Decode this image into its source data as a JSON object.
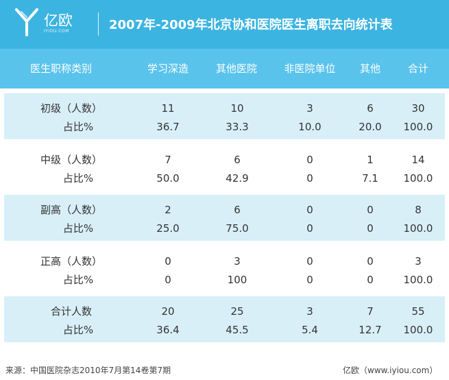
{
  "header": {
    "logo_text": "亿欧",
    "logo_sub": "IYIOU.COM",
    "title": "2007年-2009年北京协和医院医生离职去向统计表"
  },
  "table": {
    "columns": [
      "医生职称类别",
      "学习深造",
      "其他医院",
      "非医院单位",
      "其他",
      "合计"
    ],
    "groups": [
      {
        "label": "初级（人数）",
        "sub_label": "占比%",
        "counts": [
          "11",
          "10",
          "3",
          "6",
          "30"
        ],
        "percents": [
          "36.7",
          "33.3",
          "10.0",
          "20.0",
          "100.0"
        ]
      },
      {
        "label": "中级（人数）",
        "sub_label": "占比%",
        "counts": [
          "7",
          "6",
          "0",
          "1",
          "14"
        ],
        "percents": [
          "50.0",
          "42.9",
          "0",
          "7.1",
          "100.0"
        ]
      },
      {
        "label": "副高（人数）",
        "sub_label": "占比%",
        "counts": [
          "2",
          "6",
          "0",
          "0",
          "8"
        ],
        "percents": [
          "25.0",
          "75.0",
          "0",
          "0",
          "100.0"
        ]
      },
      {
        "label": "正高（人数）",
        "sub_label": "占比%",
        "counts": [
          "0",
          "3",
          "0",
          "0",
          "3"
        ],
        "percents": [
          "0",
          "100",
          "0",
          "0",
          "100.0"
        ]
      },
      {
        "label": "合计人数",
        "sub_label": "占比%",
        "counts": [
          "20",
          "25",
          "3",
          "7",
          "55"
        ],
        "percents": [
          "36.4",
          "45.5",
          "5.4",
          "12.7",
          "100.0"
        ]
      }
    ]
  },
  "footer": {
    "source": "来源：中国医院杂志2010年7月第14卷第7期",
    "credit": "亿欧（www.iyiou.com）"
  },
  "colors": {
    "header_bg": "#3cb4e1",
    "column_header_bg": "#5ac3ec",
    "shaded_row_bg": "#d8eff8"
  }
}
